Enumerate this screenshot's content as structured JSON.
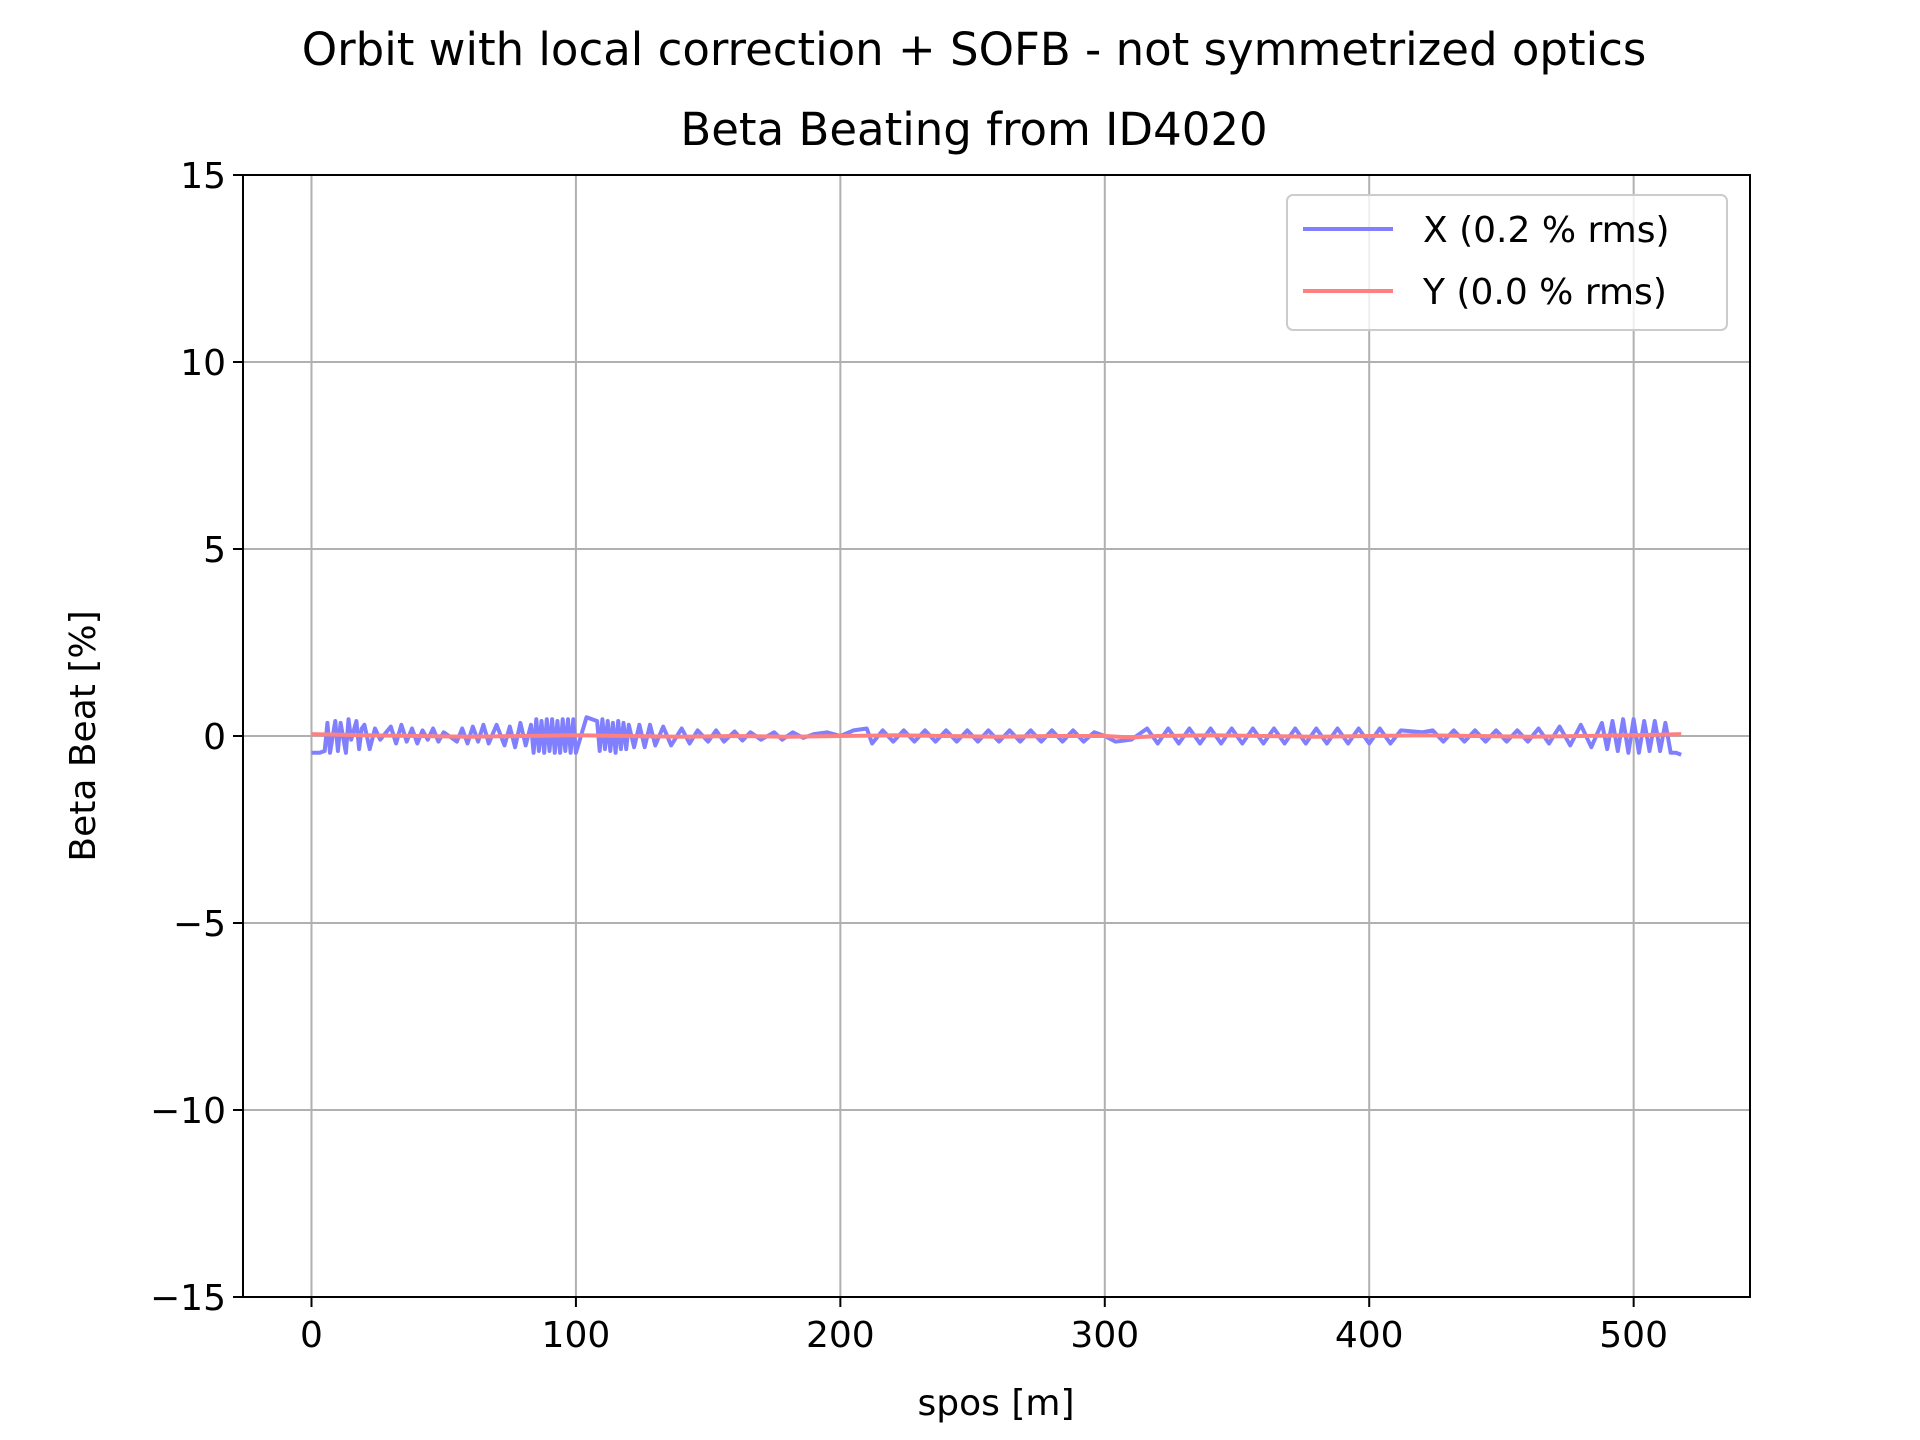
{
  "chart_data": {
    "type": "line",
    "title": "Orbit with local correction + SOFB - not symmetrized optics",
    "subtitle": "Beta Beating from ID4020",
    "xlabel": "spos [m]",
    "ylabel": "Beta Beat [%]",
    "xlim": [
      -25.9,
      544.0
    ],
    "ylim": [
      -15,
      15
    ],
    "x_ticks": [
      0,
      100,
      200,
      300,
      400,
      500
    ],
    "x_tick_labels": [
      "0",
      "100",
      "200",
      "300",
      "400",
      "500"
    ],
    "y_ticks": [
      -15,
      -10,
      -5,
      0,
      5,
      10,
      15
    ],
    "y_tick_labels": [
      "−15",
      "−10",
      "−5",
      "0",
      "5",
      "10",
      "15"
    ],
    "grid": true,
    "legend_position": "top-right",
    "colors": {
      "X": "#8080ff",
      "Y": "#ff8080"
    },
    "series": [
      {
        "name": "X (0.2 % rms)",
        "color": "#8080ff",
        "x": [
          0,
          3,
          5,
          6,
          7,
          9,
          10,
          11,
          13,
          14,
          15,
          17,
          18,
          19,
          20,
          22,
          24,
          26,
          30,
          32,
          34,
          36,
          38,
          40,
          42,
          44,
          46,
          48,
          50,
          55,
          57,
          59,
          61,
          63,
          65,
          67,
          70,
          73,
          75,
          77,
          79,
          81,
          83,
          84,
          85,
          86,
          87,
          88,
          89,
          90,
          91,
          92,
          93,
          94,
          95,
          96,
          97,
          98,
          99,
          100,
          104,
          108,
          109,
          110,
          111,
          112,
          113,
          114,
          115,
          116,
          117,
          118,
          119,
          120,
          122,
          124,
          126,
          128,
          130,
          133,
          136,
          140,
          143,
          146,
          150,
          153,
          156,
          160,
          163,
          166,
          170,
          175,
          178,
          182,
          186,
          190,
          195,
          200,
          205,
          210,
          212,
          216,
          220,
          224,
          228,
          232,
          236,
          240,
          244,
          248,
          252,
          256,
          260,
          264,
          268,
          272,
          276,
          280,
          284,
          288,
          292,
          296,
          300,
          304,
          310,
          316,
          320,
          324,
          328,
          332,
          336,
          340,
          344,
          348,
          352,
          356,
          360,
          364,
          368,
          372,
          376,
          380,
          384,
          388,
          392,
          396,
          400,
          404,
          408,
          412,
          420,
          424,
          428,
          432,
          436,
          440,
          444,
          448,
          452,
          456,
          460,
          464,
          468,
          472,
          476,
          480,
          484,
          488,
          490,
          492,
          494,
          496,
          498,
          500,
          502,
          504,
          506,
          508,
          510,
          512,
          514,
          516,
          518
        ],
        "values": [
          -0.45,
          -0.45,
          -0.4,
          0.35,
          -0.45,
          0.4,
          -0.4,
          0.35,
          -0.45,
          0.45,
          -0.1,
          0.4,
          -0.35,
          0.2,
          0.3,
          -0.35,
          0.2,
          -0.1,
          0.25,
          -0.2,
          0.3,
          -0.15,
          0.2,
          -0.2,
          0.15,
          -0.1,
          0.2,
          -0.15,
          0.1,
          -0.15,
          0.2,
          -0.2,
          0.25,
          -0.15,
          0.3,
          -0.2,
          0.3,
          -0.25,
          0.25,
          -0.3,
          0.35,
          -0.25,
          0.3,
          -0.45,
          0.45,
          -0.4,
          0.4,
          -0.45,
          0.45,
          -0.4,
          0.45,
          -0.45,
          0.4,
          -0.45,
          0.45,
          -0.4,
          0.45,
          -0.45,
          0.45,
          -0.45,
          0.5,
          0.4,
          -0.4,
          0.45,
          -0.35,
          0.4,
          -0.4,
          0.35,
          -0.45,
          0.4,
          -0.35,
          0.35,
          -0.35,
          0.3,
          -0.3,
          0.3,
          -0.3,
          0.3,
          -0.25,
          0.25,
          -0.25,
          0.2,
          -0.2,
          0.15,
          -0.15,
          0.15,
          -0.15,
          0.12,
          -0.12,
          0.1,
          -0.1,
          0.1,
          -0.1,
          0.1,
          -0.05,
          0.05,
          0.1,
          0.0,
          0.15,
          0.2,
          -0.2,
          0.15,
          -0.15,
          0.15,
          -0.15,
          0.15,
          -0.15,
          0.15,
          -0.15,
          0.15,
          -0.15,
          0.15,
          -0.15,
          0.15,
          -0.15,
          0.15,
          -0.15,
          0.15,
          -0.15,
          0.15,
          -0.15,
          0.1,
          0.0,
          -0.15,
          -0.1,
          0.2,
          -0.2,
          0.2,
          -0.2,
          0.2,
          -0.2,
          0.2,
          -0.2,
          0.2,
          -0.2,
          0.2,
          -0.2,
          0.2,
          -0.2,
          0.2,
          -0.2,
          0.2,
          -0.2,
          0.2,
          -0.2,
          0.2,
          -0.2,
          0.2,
          -0.2,
          0.15,
          0.1,
          0.15,
          -0.15,
          0.15,
          -0.15,
          0.15,
          -0.15,
          0.15,
          -0.15,
          0.15,
          -0.15,
          0.2,
          -0.2,
          0.25,
          -0.25,
          0.3,
          -0.3,
          0.35,
          -0.35,
          0.4,
          -0.4,
          0.45,
          -0.45,
          0.45,
          -0.45,
          0.4,
          -0.4,
          0.4,
          -0.4,
          0.35,
          -0.45,
          -0.45,
          -0.5
        ]
      },
      {
        "name": "Y (0.0 % rms)",
        "color": "#ff8080",
        "x": [
          0,
          20,
          40,
          60,
          80,
          100,
          120,
          140,
          160,
          180,
          200,
          220,
          240,
          260,
          280,
          300,
          310,
          320,
          340,
          360,
          380,
          400,
          420,
          440,
          460,
          480,
          500,
          518
        ],
        "values": [
          0.05,
          0.02,
          0.0,
          -0.02,
          0.0,
          0.02,
          0.0,
          -0.02,
          0.0,
          -0.02,
          0.0,
          0.02,
          0.0,
          -0.02,
          0.0,
          0.0,
          -0.04,
          0.0,
          0.02,
          0.0,
          -0.02,
          0.0,
          0.02,
          0.0,
          -0.02,
          0.0,
          0.02,
          0.05
        ]
      }
    ]
  }
}
